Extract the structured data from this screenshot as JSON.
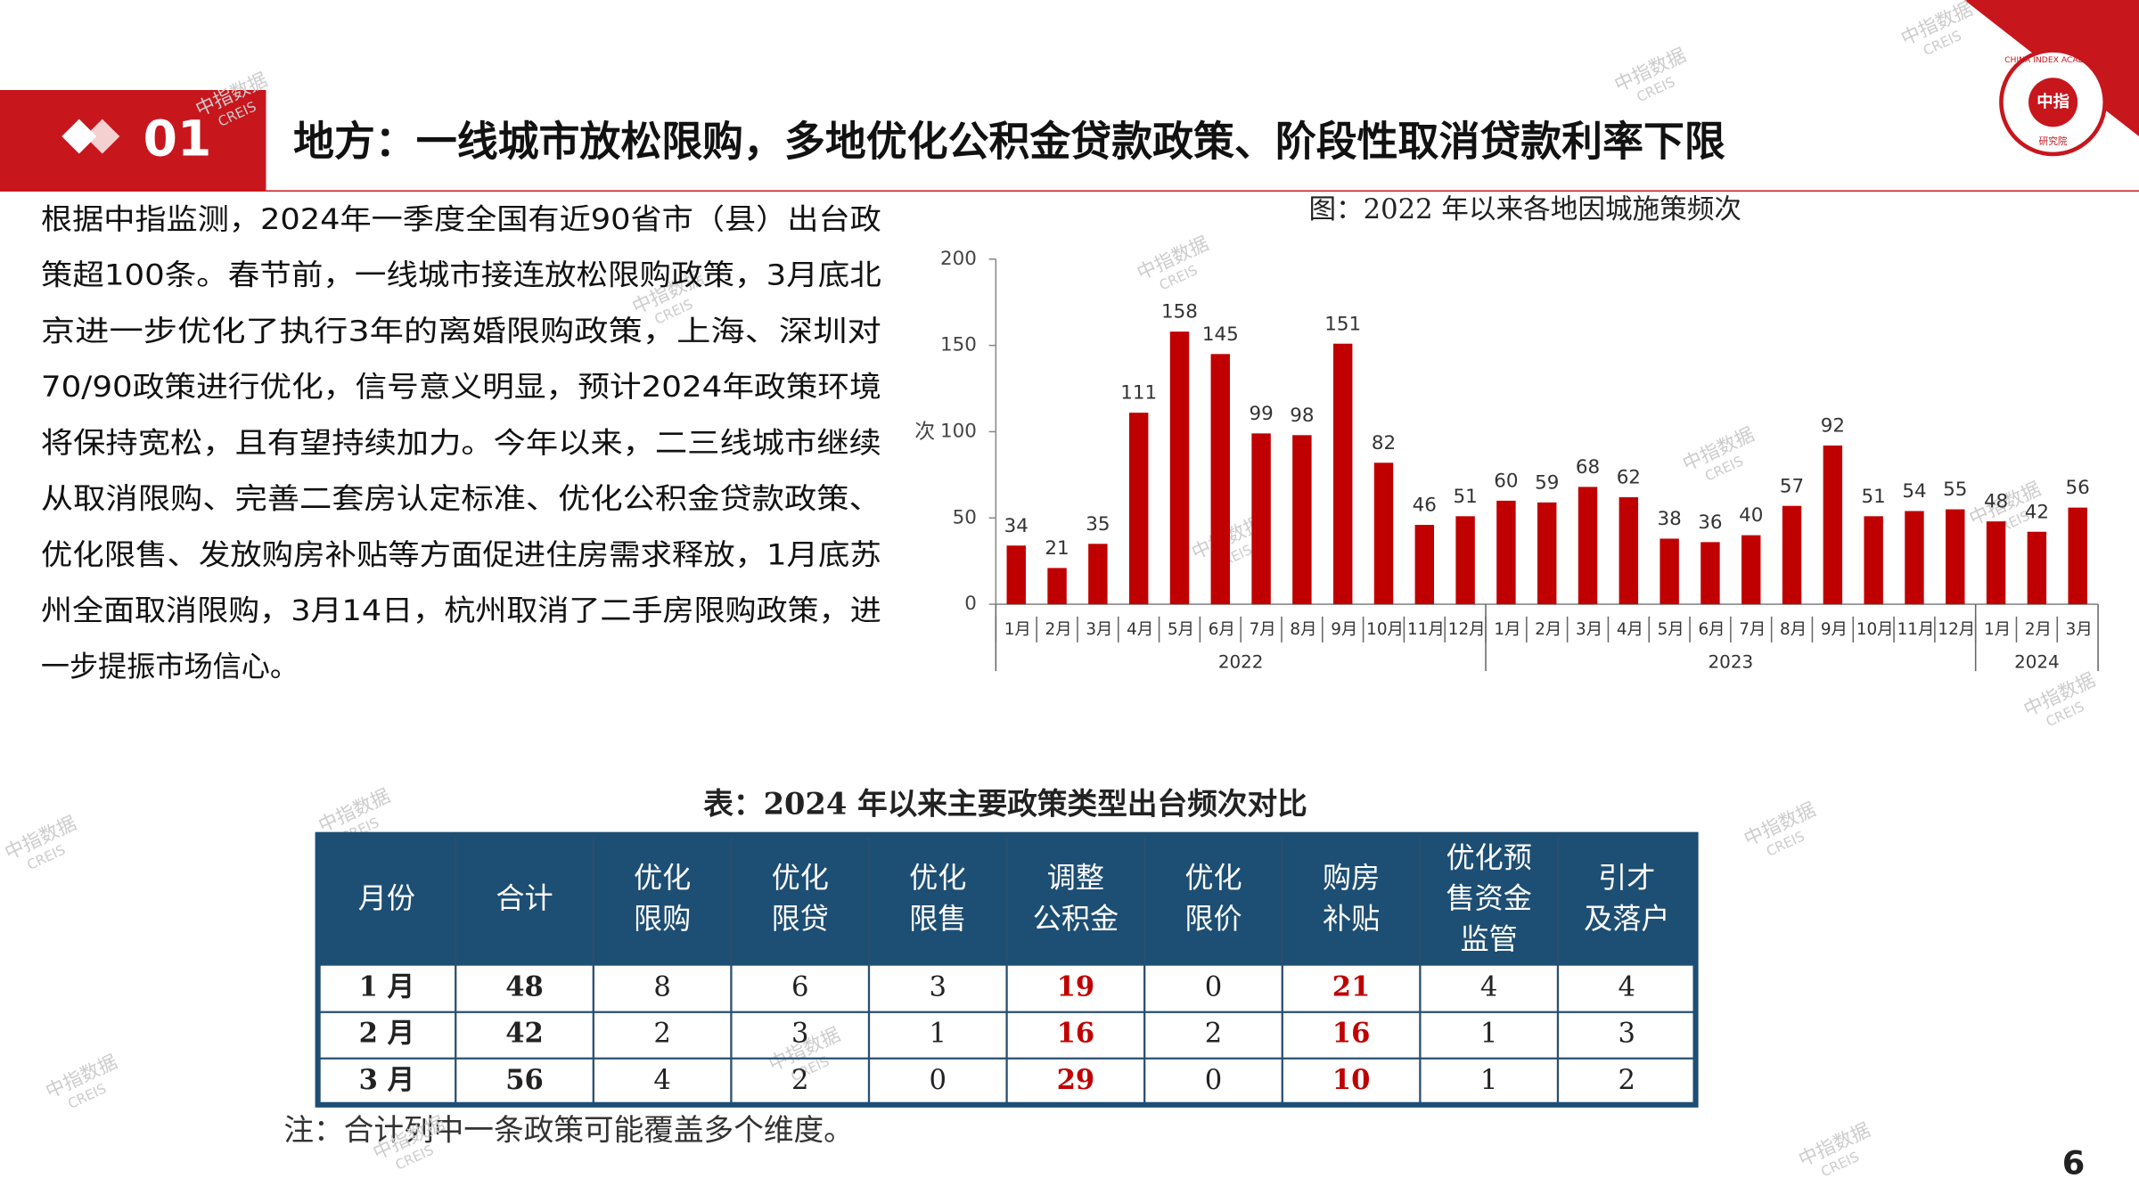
{
  "header": {
    "number": "01",
    "title": "地方：一线城市放松限购，多地优化公积金贷款政策、阶段性取消贷款利率下限"
  },
  "logo": {
    "ring": "CHINA INDEX ACADEMY",
    "name": "中指",
    "sub": "研究院"
  },
  "watermark": [
    "中指数据",
    "CREIS"
  ],
  "paragraph": [
    "根据中指监测，2024年一季度全国有近90省市（县）出台政",
    "策超100条。春节前，一线城市接连放松限购政策，3月底北",
    "京进一步优化了执行3年的离婚限购政策，上海、深圳对",
    "70/90政策进行优化，信号意义明显，预计2024年政策环境",
    "将保持宽松，且有望持续加力。今年以来，二三线城市继续",
    "从取消限购、完善二套房认定标准、优化公积金贷款政策、",
    "优化限售、发放购房补贴等方面促进住房需求释放，1月底苏",
    "州全面取消限购，3月14日，杭州取消了二手房限购政策，进",
    "一步提振市场信心。"
  ],
  "chart_data": {
    "type": "bar",
    "title": "图：2022 年以来各地因城施策频次",
    "y_label": "次",
    "categories": [
      "1月",
      "2月",
      "3月",
      "4月",
      "5月",
      "6月",
      "7月",
      "8月",
      "9月",
      "10月",
      "11月",
      "12月",
      "1月",
      "2月",
      "3月",
      "4月",
      "5月",
      "6月",
      "7月",
      "8月",
      "9月",
      "10月",
      "11月",
      "12月",
      "1月",
      "2月",
      "3月"
    ],
    "group_labels": [
      "2022",
      "2023",
      "2024"
    ],
    "group_sizes": [
      12,
      12,
      3
    ],
    "values": [
      34,
      21,
      35,
      111,
      158,
      145,
      99,
      98,
      151,
      82,
      46,
      51,
      60,
      59,
      68,
      62,
      38,
      36,
      40,
      57,
      92,
      51,
      54,
      55,
      48,
      42,
      56
    ],
    "color": "#c00000",
    "ylim": [
      0,
      200
    ],
    "yticks": [
      0,
      50,
      100,
      150,
      200
    ],
    "grid": false
  },
  "table": {
    "title": "表：2024 年以来主要政策类型出台频次对比",
    "header": [
      [
        "月份"
      ],
      [
        "合计"
      ],
      [
        "优化",
        "限购"
      ],
      [
        "优化",
        "限贷"
      ],
      [
        "优化",
        "限售"
      ],
      [
        "调整",
        "公积金"
      ],
      [
        "优化",
        "限价"
      ],
      [
        "购房",
        "补贴"
      ],
      [
        "优化预",
        "售资金",
        "监管"
      ],
      [
        "引才",
        "及落户"
      ]
    ],
    "rows": [
      [
        "1 月",
        48,
        8,
        6,
        3,
        19,
        0,
        21,
        4,
        4
      ],
      [
        "2 月",
        42,
        2,
        3,
        1,
        16,
        2,
        16,
        1,
        3
      ],
      [
        "3 月",
        56,
        4,
        2,
        0,
        29,
        0,
        10,
        1,
        2
      ]
    ],
    "highlight_columns": [
      5,
      7
    ],
    "highlight_color": "#c00000",
    "header_color": "#1d4e74",
    "note": "注：合计列中一条政策可能覆盖多个维度。"
  },
  "page_number": "6"
}
